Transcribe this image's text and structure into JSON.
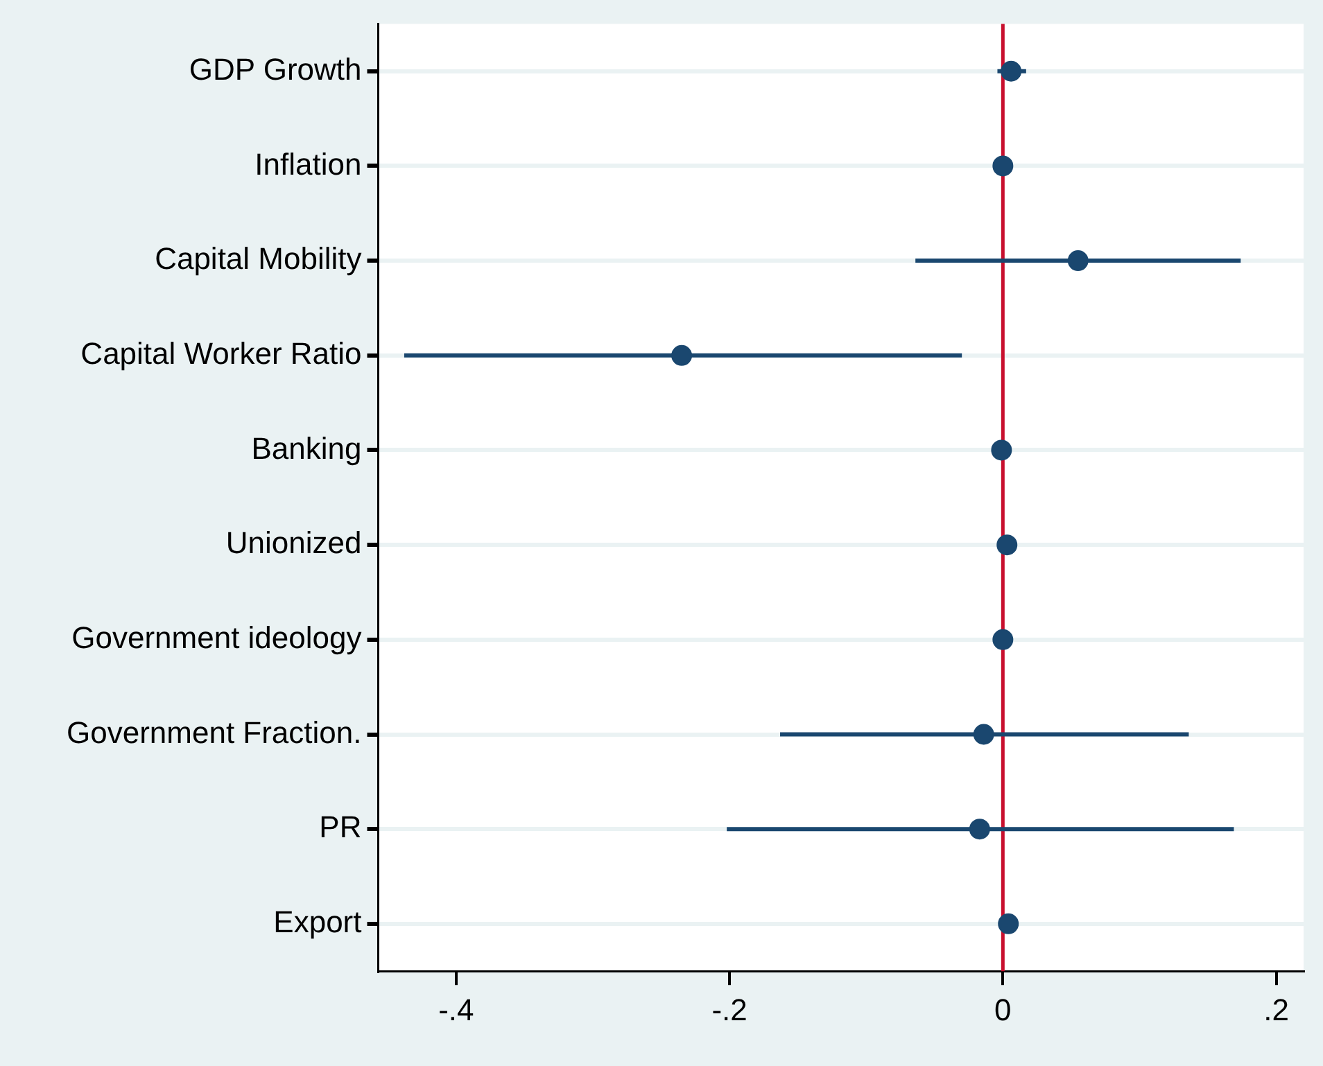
{
  "chart_data": {
    "type": "scatter",
    "orientation": "horizontal",
    "categories": [
      "GDP Growth",
      "Inflation",
      "Capital Mobility",
      "Capital Worker Ratio",
      "Banking",
      "Unionized",
      "Government ideology",
      "Government Fraction.",
      "PR",
      "Export"
    ],
    "values": [
      0.006,
      0,
      0.055,
      -0.235,
      -0.001,
      0.003,
      0,
      -0.014,
      -0.017,
      0.004
    ],
    "errors": [
      [
        -0.004,
        0.017
      ],
      null,
      [
        -0.064,
        0.174
      ],
      [
        -0.438,
        -0.03
      ],
      null,
      null,
      null,
      [
        -0.163,
        0.136
      ],
      [
        -0.202,
        0.169
      ],
      null
    ],
    "color": "#1a476f",
    "marker": "circle",
    "xlim": [
      -0.457,
      0.22
    ],
    "xticks": [
      {
        "value": -0.4,
        "label": "-.4"
      },
      {
        "value": -0.2,
        "label": "-.2"
      },
      0,
      {
        "value": 0.2,
        "label": ".2"
      }
    ],
    "ref_lines": [
      {
        "axis": "x",
        "value": 0,
        "color": "#c8102e"
      }
    ],
    "grid": "y",
    "legend": false
  }
}
